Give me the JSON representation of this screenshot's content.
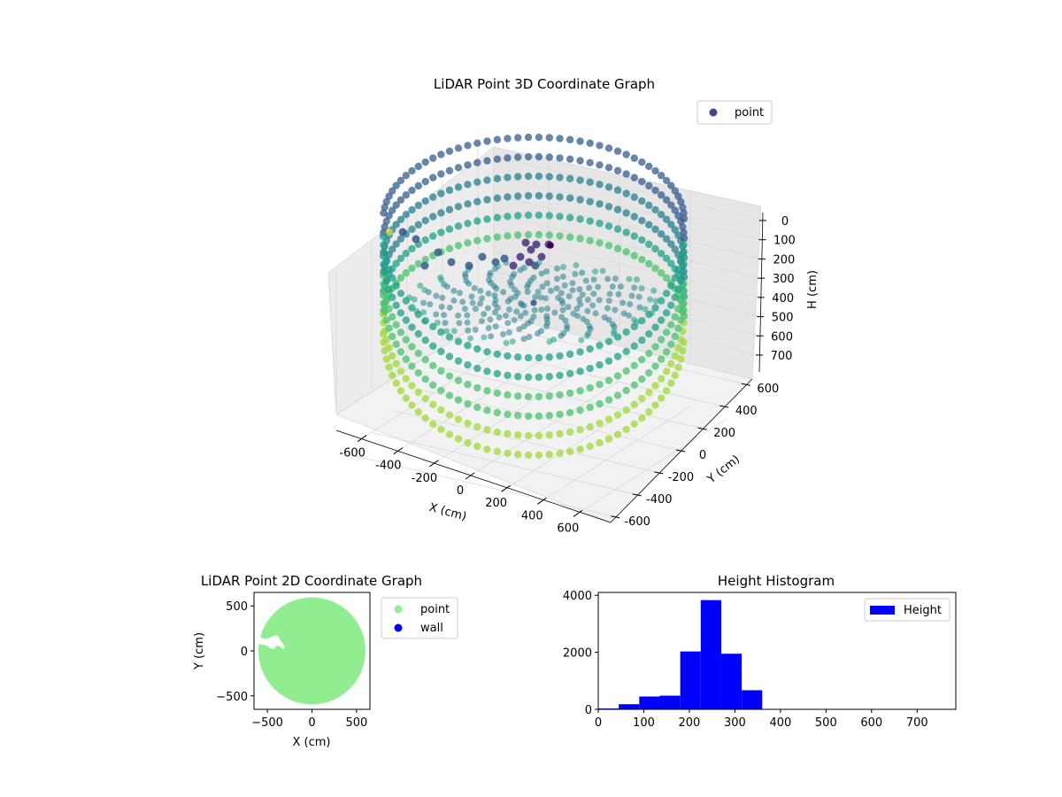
{
  "chart_data": [
    {
      "type": "scatter3d",
      "title": "LiDAR Point 3D Coordinate Graph",
      "xlabel": "X (cm)",
      "ylabel": "Y (cm)",
      "zlabel": "H (cm)",
      "xticks": [
        -600,
        -400,
        -200,
        0,
        200,
        400,
        600
      ],
      "yticks": [
        -600,
        -400,
        -200,
        0,
        200,
        400,
        600
      ],
      "zticks": [
        0,
        100,
        200,
        300,
        400,
        500,
        600,
        700
      ],
      "xlim": [
        -650,
        650
      ],
      "ylim": [
        -650,
        650
      ],
      "zlim": [
        0,
        760
      ],
      "zaxis_inverted": true,
      "grid": true,
      "legend": {
        "position": "top-right",
        "entries": [
          "point"
        ]
      },
      "series": [
        {
          "name": "point",
          "shape": "ring",
          "radius_cm": 550,
          "height_range_cm": [
            200,
            350
          ],
          "colormap": "viridis"
        }
      ],
      "colors": {
        "legend_marker": "#3e4a89"
      }
    },
    {
      "type": "scatter",
      "title": "LiDAR Point 2D Coordinate Graph",
      "xlabel": "X (cm)",
      "ylabel": "Y (cm)",
      "xticks": [
        -500,
        0,
        500
      ],
      "yticks": [
        -500,
        0,
        500
      ],
      "xlim": [
        -650,
        650
      ],
      "ylim": [
        -650,
        650
      ],
      "legend": {
        "position": "outside-right",
        "entries": [
          "point",
          "wall"
        ]
      },
      "series": [
        {
          "name": "point",
          "color": "#90ee90",
          "shape": "disk",
          "radius_cm": 600
        },
        {
          "name": "wall",
          "color": "#0000ff"
        }
      ]
    },
    {
      "type": "bar",
      "title": "Height Histogram",
      "xticks": [
        0,
        100,
        200,
        300,
        400,
        500,
        600,
        700
      ],
      "yticks": [
        0,
        2000,
        4000
      ],
      "xlim": [
        0,
        785
      ],
      "ylim": [
        0,
        4100
      ],
      "legend": {
        "position": "top-right",
        "entries": [
          "Height"
        ]
      },
      "color": "#0000ff",
      "bin_width": 45,
      "bins": [
        {
          "x": 0,
          "value": 30
        },
        {
          "x": 45,
          "value": 180
        },
        {
          "x": 90,
          "value": 450
        },
        {
          "x": 135,
          "value": 480
        },
        {
          "x": 180,
          "value": 2030
        },
        {
          "x": 225,
          "value": 3830
        },
        {
          "x": 270,
          "value": 1950
        },
        {
          "x": 315,
          "value": 670
        },
        {
          "x": 360,
          "value": 15
        },
        {
          "x": 405,
          "value": 10
        },
        {
          "x": 450,
          "value": 8
        },
        {
          "x": 495,
          "value": 6
        },
        {
          "x": 540,
          "value": 5
        },
        {
          "x": 585,
          "value": 4
        },
        {
          "x": 630,
          "value": 3
        },
        {
          "x": 675,
          "value": 2
        },
        {
          "x": 720,
          "value": 2
        }
      ]
    }
  ]
}
